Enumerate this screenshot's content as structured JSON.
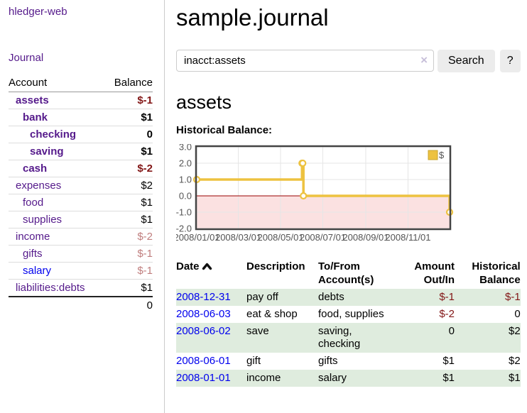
{
  "app_title": "hledger-web",
  "sidebar": {
    "journal_link": "Journal",
    "accounts": {
      "headers": {
        "account": "Account",
        "balance": "Balance"
      },
      "rows": [
        {
          "name": "assets",
          "balance": "$-1",
          "depth": 1,
          "bold": true,
          "neg": "strong",
          "link": "purple"
        },
        {
          "name": "bank",
          "balance": "$1",
          "depth": 2,
          "bold": true,
          "neg": "none",
          "link": "purple"
        },
        {
          "name": "checking",
          "balance": "0",
          "depth": 3,
          "bold": true,
          "neg": "none",
          "link": "purple"
        },
        {
          "name": "saving",
          "balance": "$1",
          "depth": 3,
          "bold": true,
          "neg": "none",
          "link": "purple"
        },
        {
          "name": "cash",
          "balance": "$-2",
          "depth": 2,
          "bold": true,
          "neg": "strong",
          "link": "purple"
        },
        {
          "name": "expenses",
          "balance": "$2",
          "depth": 1,
          "bold": false,
          "neg": "none",
          "link": "purple"
        },
        {
          "name": "food",
          "balance": "$1",
          "depth": 2,
          "bold": false,
          "neg": "none",
          "link": "purple"
        },
        {
          "name": "supplies",
          "balance": "$1",
          "depth": 2,
          "bold": false,
          "neg": "none",
          "link": "purple"
        },
        {
          "name": "income",
          "balance": "$-2",
          "depth": 1,
          "bold": false,
          "neg": "weak",
          "link": "purple"
        },
        {
          "name": "gifts",
          "balance": "$-1",
          "depth": 2,
          "bold": false,
          "neg": "weak",
          "link": "purple"
        },
        {
          "name": "salary",
          "balance": "$-1",
          "depth": 2,
          "bold": false,
          "neg": "weak",
          "link": "blue"
        },
        {
          "name": "liabilities:debts",
          "balance": "$1",
          "depth": 1,
          "bold": false,
          "neg": "none",
          "link": "purple"
        }
      ],
      "total": "0"
    }
  },
  "main": {
    "page_title": "sample.journal",
    "search": {
      "value": "inacct:assets",
      "clear_icon": "×",
      "search_button": "Search",
      "help_button": "?"
    },
    "account_heading": "assets",
    "chart_heading": "Historical Balance:"
  },
  "chart_data": {
    "type": "line",
    "step": true,
    "title": "Historical Balance",
    "series": [
      {
        "name": "$",
        "color": "#edc240",
        "points": [
          {
            "date": "2008-01-01",
            "value": 1
          },
          {
            "date": "2008-06-01",
            "value": 2
          },
          {
            "date": "2008-06-02",
            "value": 2
          },
          {
            "date": "2008-06-03",
            "value": 0
          },
          {
            "date": "2008-12-31",
            "value": -1
          }
        ]
      }
    ],
    "x_range": [
      "2008-01-01",
      "2008-12-31"
    ],
    "xticks": [
      "2008/01/01",
      "2008/03/01",
      "2008/05/01",
      "2008/07/01",
      "2008/09/01",
      "2008/11/01"
    ],
    "yticks": [
      "3.0",
      "2.0",
      "1.0",
      "0.0",
      "-1.0",
      "-2.0"
    ],
    "ylim": [
      -2,
      3
    ],
    "legend": {
      "label": "$",
      "position": "top-right"
    },
    "colors": {
      "line": "#edc240",
      "marker_fill": "#ffffff",
      "negative_fill": "#fbe1e1",
      "zero_line": "#990000",
      "border": "#444444",
      "grid": "#e6e6e6",
      "text": "#545454",
      "legend_square_border": "#c9a42f"
    }
  },
  "register": {
    "headers": [
      "Date",
      "Description",
      "To/From Account(s)",
      "Amount Out/In",
      "Historical Balance"
    ],
    "rows": [
      {
        "date": "2008-12-31",
        "description": "pay off",
        "accounts": "debts",
        "amount": "$-1",
        "balance": "$-1",
        "amount_neg": true,
        "balance_neg": true
      },
      {
        "date": "2008-06-03",
        "description": "eat & shop",
        "accounts": "food, supplies",
        "amount": "$-2",
        "balance": "0",
        "amount_neg": true,
        "balance_neg": false
      },
      {
        "date": "2008-06-02",
        "description": "save",
        "accounts": "saving, checking",
        "amount": "0",
        "balance": "$2",
        "amount_neg": false,
        "balance_neg": false
      },
      {
        "date": "2008-06-01",
        "description": "gift",
        "accounts": "gifts",
        "amount": "$1",
        "balance": "$2",
        "amount_neg": false,
        "balance_neg": false
      },
      {
        "date": "2008-01-01",
        "description": "income",
        "accounts": "salary",
        "amount": "$1",
        "balance": "$1",
        "amount_neg": false,
        "balance_neg": false
      }
    ]
  },
  "colors": {
    "link_purple": "#551a8b",
    "link_blue": "#0000ee",
    "negative_strong": "#821616",
    "negative_weak": "#c07e7e",
    "row_stripe_green": "#dfecde",
    "button_bg": "#ececec"
  }
}
